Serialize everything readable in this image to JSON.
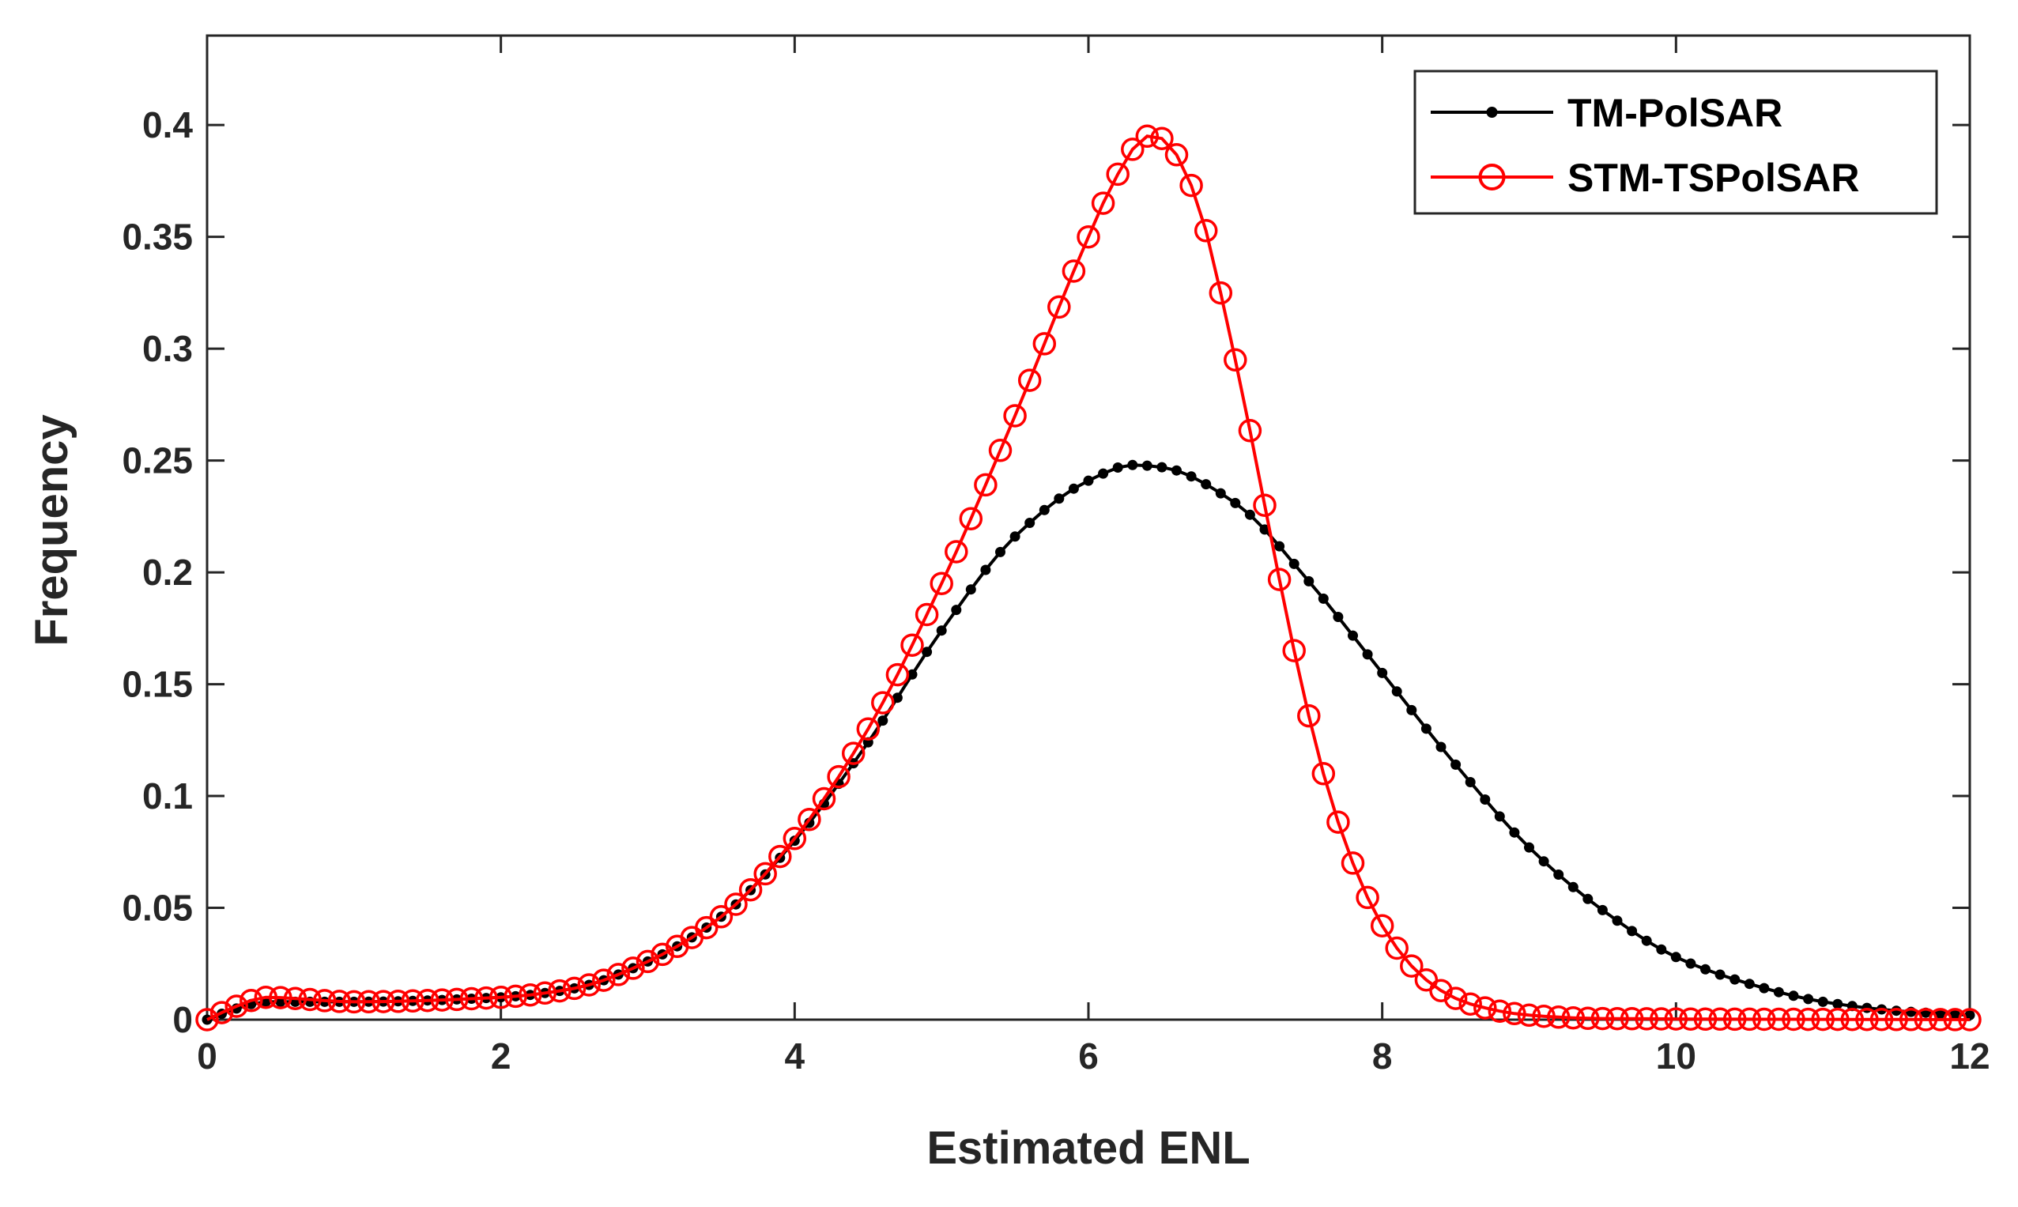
{
  "chart_data": {
    "type": "line",
    "title": "",
    "xlabel": "Estimated ENL",
    "ylabel": "Frequency",
    "xlim": [
      0,
      12
    ],
    "ylim": [
      0,
      0.44
    ],
    "xticks": [
      0,
      2,
      4,
      6,
      8,
      10,
      12
    ],
    "yticks": [
      0,
      0.05,
      0.1,
      0.15,
      0.2,
      0.25,
      0.3,
      0.35,
      0.4
    ],
    "xtick_labels": [
      "0",
      "2",
      "4",
      "6",
      "8",
      "10",
      "12"
    ],
    "ytick_labels": [
      "0",
      "0.05",
      "0.1",
      "0.15",
      "0.2",
      "0.25",
      "0.3",
      "0.35",
      "0.4"
    ],
    "grid": false,
    "box": true,
    "legend_position": "top-right",
    "x_step": 0.1,
    "series": [
      {
        "name": "TM-PolSAR",
        "color": "#000000",
        "marker": "filled-dot",
        "knots": [
          [
            0,
            0
          ],
          [
            0.2,
            0.005
          ],
          [
            0.4,
            0.008
          ],
          [
            1.0,
            0.008
          ],
          [
            2.0,
            0.01
          ],
          [
            2.5,
            0.014
          ],
          [
            3.0,
            0.026
          ],
          [
            3.5,
            0.046
          ],
          [
            4.0,
            0.08
          ],
          [
            4.5,
            0.124
          ],
          [
            5.0,
            0.174
          ],
          [
            5.5,
            0.216
          ],
          [
            6.0,
            0.241
          ],
          [
            6.3,
            0.248
          ],
          [
            6.5,
            0.247
          ],
          [
            7.0,
            0.231
          ],
          [
            7.5,
            0.196
          ],
          [
            8.0,
            0.155
          ],
          [
            8.5,
            0.114
          ],
          [
            9.0,
            0.077
          ],
          [
            9.5,
            0.049
          ],
          [
            10.0,
            0.028
          ],
          [
            10.5,
            0.016
          ],
          [
            11.0,
            0.008
          ],
          [
            11.5,
            0.004
          ],
          [
            12.0,
            0.002
          ]
        ]
      },
      {
        "name": "STM-TSPolSAR",
        "color": "#ff0000",
        "marker": "open-circle",
        "knots": [
          [
            0,
            0
          ],
          [
            0.2,
            0.006
          ],
          [
            0.4,
            0.01
          ],
          [
            1.0,
            0.008
          ],
          [
            2.0,
            0.01
          ],
          [
            2.5,
            0.014
          ],
          [
            3.0,
            0.026
          ],
          [
            3.5,
            0.046
          ],
          [
            4.0,
            0.081
          ],
          [
            4.5,
            0.13
          ],
          [
            5.0,
            0.195
          ],
          [
            5.5,
            0.27
          ],
          [
            6.0,
            0.35
          ],
          [
            6.2,
            0.378
          ],
          [
            6.4,
            0.395
          ],
          [
            6.5,
            0.394
          ],
          [
            6.7,
            0.373
          ],
          [
            7.0,
            0.295
          ],
          [
            7.2,
            0.23
          ],
          [
            7.4,
            0.165
          ],
          [
            7.6,
            0.11
          ],
          [
            7.8,
            0.07
          ],
          [
            8.0,
            0.042
          ],
          [
            8.2,
            0.024
          ],
          [
            8.4,
            0.013
          ],
          [
            8.6,
            0.007
          ],
          [
            9.0,
            0.002
          ],
          [
            9.5,
            0.0005
          ],
          [
            12.0,
            0
          ]
        ]
      }
    ]
  }
}
